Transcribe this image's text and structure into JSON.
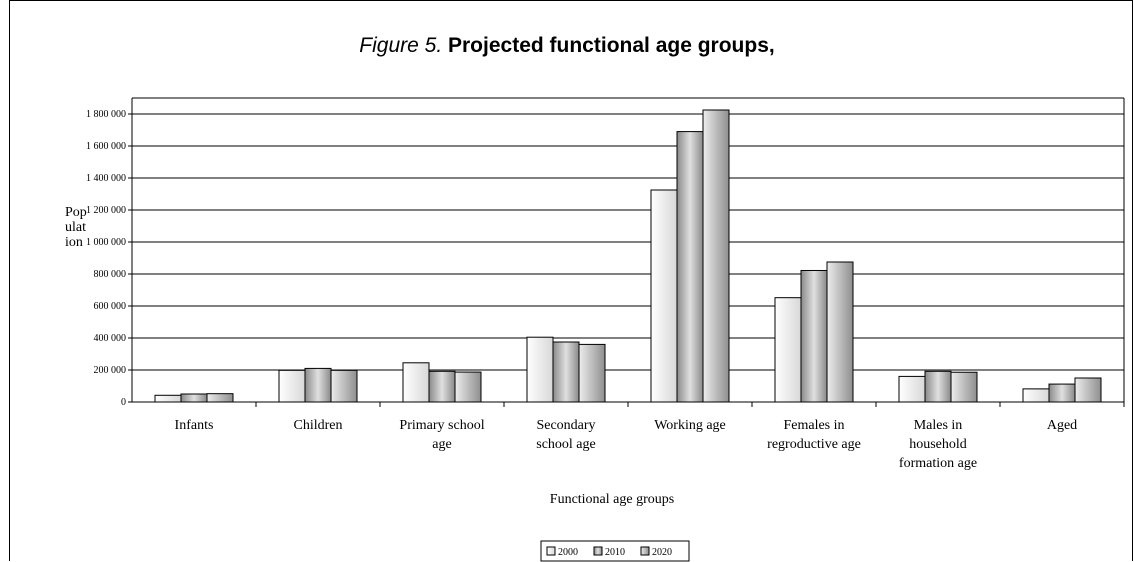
{
  "title": {
    "prefix": "Figure 5.",
    "text": "Projected functional age groups,"
  },
  "chart_data": {
    "type": "bar",
    "title": "Figure 5. Projected functional age groups,",
    "xlabel": "Functional age groups",
    "ylabel": "Population",
    "ylim": [
      0,
      1900000
    ],
    "yticks": [
      0,
      200000,
      400000,
      600000,
      800000,
      1000000,
      1200000,
      1400000,
      1600000,
      1800000
    ],
    "ytick_labels": [
      "0",
      "200 000",
      "400 000",
      "600 000",
      "800 000",
      "1 000 000",
      "1 200 000",
      "1 400 000",
      "1 600 000",
      "1 800 000"
    ],
    "grid": true,
    "legend_position": "bottom",
    "categories": [
      "Infants",
      "Children",
      "Primary school age",
      "Secondary school age",
      "Working age",
      "Females in regroductive age",
      "Males in household formation age",
      "Aged"
    ],
    "category_lines": [
      [
        "Infants"
      ],
      [
        "Children"
      ],
      [
        "Primary school",
        "age"
      ],
      [
        "Secondary",
        "school age"
      ],
      [
        "Working age"
      ],
      [
        "Females in",
        "regroductive age"
      ],
      [
        "Males in",
        "household",
        "formation age"
      ],
      [
        "Aged"
      ]
    ],
    "series": [
      {
        "name": "2000",
        "values": [
          42000,
          198000,
          245000,
          405000,
          1325000,
          652000,
          160000,
          82000
        ]
      },
      {
        "name": "2010",
        "values": [
          50000,
          210000,
          192000,
          375000,
          1690000,
          822000,
          192000,
          112000
        ]
      },
      {
        "name": "2020",
        "values": [
          52000,
          198000,
          187000,
          360000,
          1825000,
          875000,
          186000,
          150000
        ]
      }
    ],
    "ylabel_lines": [
      "Pop",
      "ulat",
      "ion"
    ]
  },
  "colors": {
    "axis": "#000000",
    "grid": "#000000",
    "series_fills": [
      "#f2f2f2",
      "#bcbcbc",
      "#d4d4d4"
    ]
  }
}
